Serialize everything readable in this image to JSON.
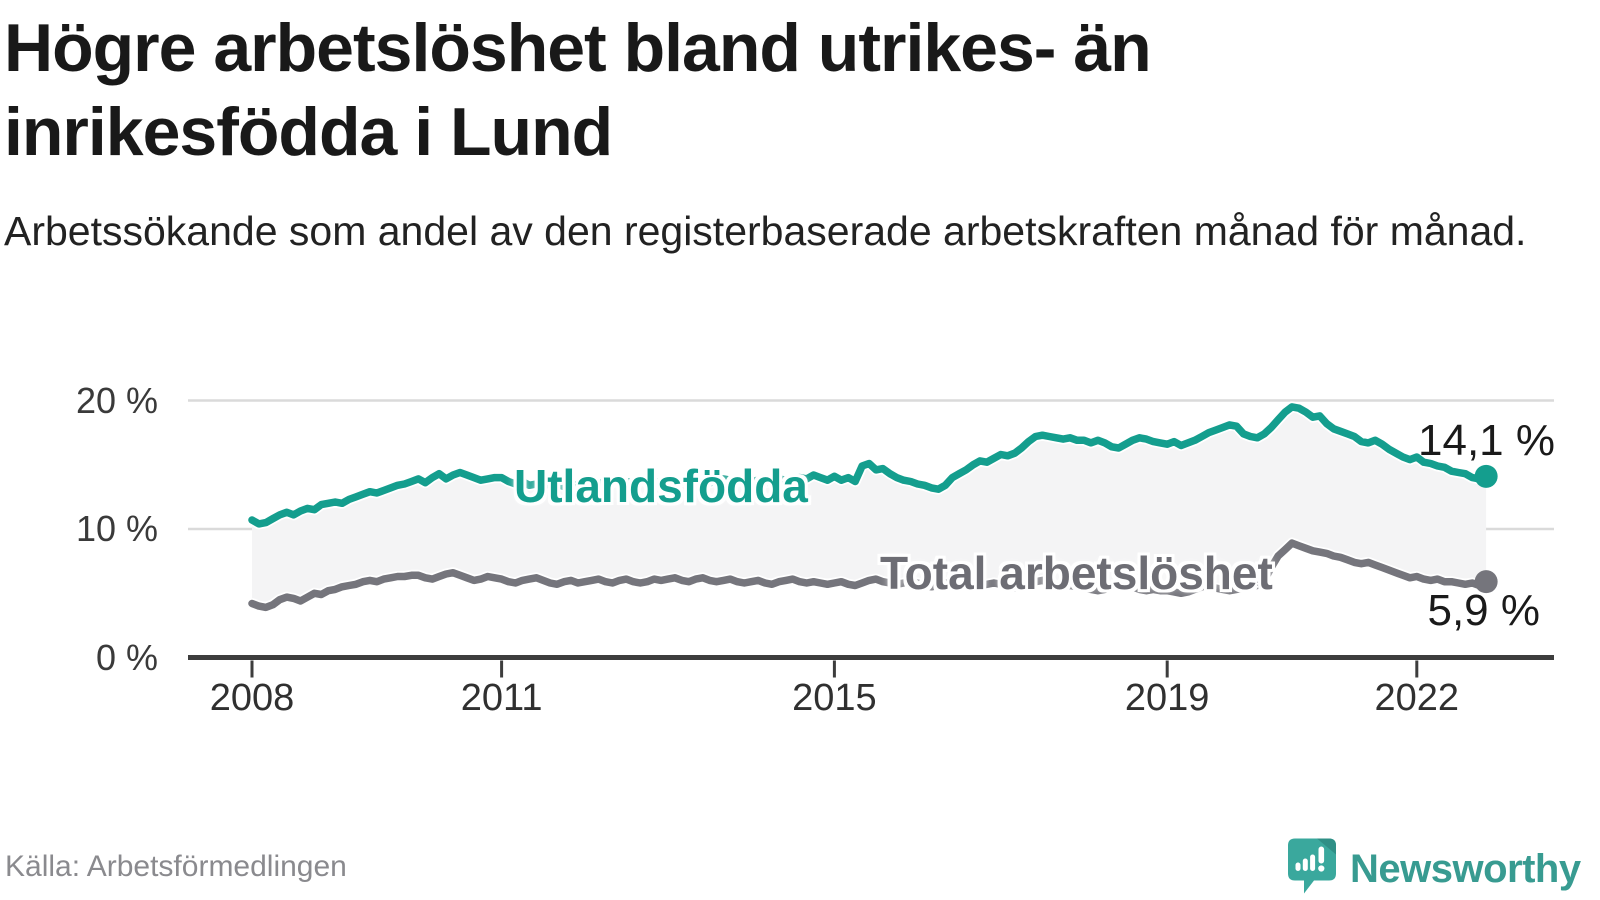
{
  "header": {
    "title": "Högre arbetslöshet bland utrikes- än inrikesfödda i Lund",
    "subtitle": "Arbetssökande som andel av den registerbaserade arbetskraften månad för månad."
  },
  "footer": {
    "source": "Källa: Arbetsförmedlingen",
    "brand_name": "Newsworthy",
    "brand_icon": "newsworthy-speech-bubble-chart-icon",
    "brand_color": "#3aa89d",
    "brand_text_color": "#389b91"
  },
  "chart_data": {
    "type": "line",
    "frequency": "monthly",
    "x_start_year": 2008,
    "x_start_month": 1,
    "x_end_year": 2022,
    "x_end_month": 11,
    "x_tick_years": [
      2008,
      2011,
      2015,
      2019,
      2022
    ],
    "x_tick_labels": [
      "2008",
      "2011",
      "2015",
      "2019",
      "2022"
    ],
    "y_ticks": [
      {
        "value": 0,
        "label": "0 %"
      },
      {
        "value": 10,
        "label": "10 %"
      },
      {
        "value": 20,
        "label": "20 %"
      }
    ],
    "ylim": [
      0,
      21.5
    ],
    "unit": "%",
    "grid": "horizontal",
    "band_fill": "#f4f4f5",
    "axis_color": "#3d3d3d",
    "gridline_color": "#dadada",
    "series": [
      {
        "name": "Utlandsfödda",
        "color": "#149e8e",
        "end_label": "14,1 %",
        "end_value": 14.1,
        "values": [
          10.7,
          10.4,
          10.5,
          10.8,
          11.1,
          11.3,
          11.1,
          11.4,
          11.6,
          11.5,
          11.9,
          12.0,
          12.1,
          12.0,
          12.3,
          12.5,
          12.7,
          12.9,
          12.8,
          13.0,
          13.2,
          13.4,
          13.5,
          13.7,
          13.9,
          13.6,
          14.0,
          14.3,
          13.9,
          14.2,
          14.4,
          14.2,
          14.0,
          13.8,
          13.9,
          14.0,
          14.0,
          13.7,
          13.5,
          13.7,
          13.4,
          13.5,
          13.6,
          13.4,
          13.5,
          13.3,
          13.4,
          13.5,
          13.4,
          13.6,
          13.5,
          13.7,
          13.6,
          13.8,
          13.7,
          13.6,
          13.8,
          13.7,
          13.6,
          13.7,
          13.8,
          13.6,
          13.7,
          13.9,
          13.7,
          13.8,
          13.6,
          13.7,
          13.9,
          13.8,
          13.7,
          13.8,
          13.7,
          13.8,
          13.6,
          13.7,
          13.9,
          13.8,
          13.9,
          14.0,
          13.9,
          14.2,
          14.0,
          13.8,
          14.1,
          13.8,
          14.0,
          13.7,
          14.9,
          15.1,
          14.6,
          14.7,
          14.3,
          14.0,
          13.8,
          13.7,
          13.5,
          13.4,
          13.2,
          13.1,
          13.4,
          14.0,
          14.3,
          14.6,
          15.0,
          15.3,
          15.2,
          15.5,
          15.8,
          15.7,
          15.9,
          16.3,
          16.8,
          17.2,
          17.3,
          17.2,
          17.1,
          17.0,
          17.1,
          16.9,
          16.9,
          16.7,
          16.9,
          16.7,
          16.4,
          16.3,
          16.6,
          16.9,
          17.1,
          17.0,
          16.8,
          16.7,
          16.6,
          16.8,
          16.5,
          16.7,
          16.9,
          17.2,
          17.5,
          17.7,
          17.9,
          18.1,
          18.0,
          17.4,
          17.2,
          17.1,
          17.4,
          17.9,
          18.5,
          19.1,
          19.5,
          19.4,
          19.1,
          18.7,
          18.8,
          18.2,
          17.8,
          17.6,
          17.4,
          17.2,
          16.8,
          16.7,
          16.9,
          16.6,
          16.2,
          15.9,
          15.6,
          15.4,
          15.6,
          15.2,
          15.1,
          14.9,
          14.8,
          14.5,
          14.4,
          14.3,
          14.0,
          13.9,
          14.1
        ]
      },
      {
        "name": "Total arbetslöshet",
        "color": "#75757c",
        "label_color": "#6d6d74",
        "end_label": "5,9 %",
        "end_value": 5.9,
        "values": [
          4.2,
          4.0,
          3.9,
          4.1,
          4.5,
          4.7,
          4.6,
          4.4,
          4.7,
          5.0,
          4.9,
          5.2,
          5.3,
          5.5,
          5.6,
          5.7,
          5.9,
          6.0,
          5.9,
          6.1,
          6.2,
          6.3,
          6.3,
          6.4,
          6.4,
          6.2,
          6.1,
          6.3,
          6.5,
          6.6,
          6.4,
          6.2,
          6.0,
          6.1,
          6.3,
          6.2,
          6.1,
          5.9,
          5.8,
          6.0,
          6.1,
          6.2,
          6.0,
          5.8,
          5.7,
          5.9,
          6.0,
          5.8,
          5.9,
          6.0,
          6.1,
          5.9,
          5.8,
          6.0,
          6.1,
          5.9,
          5.8,
          5.9,
          6.1,
          6.0,
          6.1,
          6.2,
          6.0,
          5.9,
          6.1,
          6.2,
          6.0,
          5.9,
          6.0,
          6.1,
          5.9,
          5.8,
          5.9,
          6.0,
          5.8,
          5.7,
          5.9,
          6.0,
          6.1,
          5.9,
          5.8,
          5.9,
          5.8,
          5.7,
          5.8,
          5.9,
          5.7,
          5.6,
          5.8,
          6.0,
          6.1,
          5.9,
          5.8,
          5.7,
          5.8,
          5.9,
          5.8,
          5.6,
          5.5,
          5.6,
          5.8,
          5.9,
          6.0,
          5.8,
          5.7,
          5.6,
          5.7,
          5.8,
          5.7,
          5.5,
          5.4,
          5.5,
          5.7,
          5.9,
          6.0,
          5.8,
          5.6,
          5.5,
          5.6,
          5.5,
          5.4,
          5.3,
          5.2,
          5.3,
          5.5,
          5.6,
          5.7,
          5.5,
          5.3,
          5.2,
          5.3,
          5.2,
          5.2,
          5.1,
          5.0,
          5.1,
          5.3,
          5.5,
          5.6,
          5.4,
          5.3,
          5.2,
          5.3,
          5.4,
          5.5,
          5.6,
          6.0,
          7.0,
          7.9,
          8.4,
          8.9,
          8.7,
          8.5,
          8.3,
          8.2,
          8.1,
          7.9,
          7.8,
          7.6,
          7.4,
          7.3,
          7.4,
          7.2,
          7.0,
          6.8,
          6.6,
          6.4,
          6.2,
          6.3,
          6.1,
          6.0,
          6.1,
          5.9,
          5.9,
          5.8,
          5.7,
          5.8,
          5.6,
          5.9
        ]
      }
    ]
  }
}
